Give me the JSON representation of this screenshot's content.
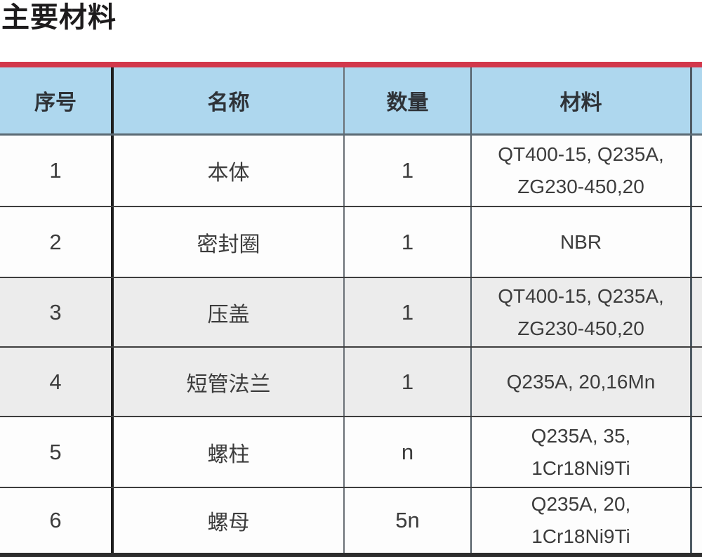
{
  "page": {
    "title": "主要材料"
  },
  "colors": {
    "accent_red": "#d2374b",
    "header_bg": "#aed7ee",
    "shaded_row_bg": "#ececec",
    "row_bg": "#fdfdfd",
    "border_dark": "#2d2d2d"
  },
  "table": {
    "headers": [
      "序号",
      "名称",
      "数量",
      "材料"
    ],
    "rows": [
      {
        "no": "1",
        "name": "本体",
        "qty": "1",
        "material": "QT400-15, Q235A,\nZG230-450,20"
      },
      {
        "no": "2",
        "name": "密封圈",
        "qty": "1",
        "material": "NBR"
      },
      {
        "no": "3",
        "name": "压盖",
        "qty": "1",
        "material": "QT400-15, Q235A,\nZG230-450,20"
      },
      {
        "no": "4",
        "name": "短管法兰",
        "qty": "1",
        "material": "Q235A, 20,16Mn"
      },
      {
        "no": "5",
        "name": "螺柱",
        "qty": "n",
        "material": "Q235A, 35,\n1Cr18Ni9Ti"
      },
      {
        "no": "6",
        "name": "螺母",
        "qty": "5n",
        "material": "Q235A, 20,\n1Cr18Ni9Ti"
      }
    ]
  }
}
